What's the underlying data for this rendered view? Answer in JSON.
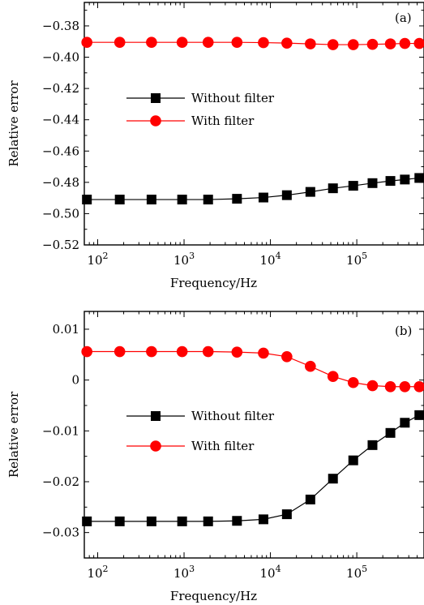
{
  "chart_data": [
    {
      "type": "line",
      "panel_label": "(a)",
      "xlabel": "Frequency/Hz",
      "ylabel": "Relative error",
      "x_scale": "log",
      "xlim": [
        70,
        600000
      ],
      "ylim": [
        -0.52,
        -0.365
      ],
      "x_ticks": [
        100,
        1000,
        10000,
        100000
      ],
      "x_tick_labels": [
        "10",
        "10",
        "10",
        "10"
      ],
      "x_tick_exponents": [
        "2",
        "3",
        "4",
        "5"
      ],
      "y_ticks": [
        -0.52,
        -0.5,
        -0.48,
        -0.46,
        -0.44,
        -0.42,
        -0.4,
        -0.38
      ],
      "y_tick_labels": [
        "−0.52",
        "−0.50",
        "−0.48",
        "−0.46",
        "−0.44",
        "−0.42",
        "−0.40",
        "−0.38"
      ],
      "legend_position": "center-left",
      "grid": false,
      "x": [
        75,
        180,
        420,
        950,
        1900,
        4100,
        8300,
        15500,
        29000,
        53000,
        91000,
        152000,
        245000,
        360000,
        530000
      ],
      "series": [
        {
          "name": "Without filter",
          "marker": "square",
          "color": "#000000",
          "values": [
            -0.491,
            -0.491,
            -0.491,
            -0.491,
            -0.491,
            -0.4905,
            -0.4897,
            -0.4882,
            -0.4861,
            -0.4838,
            -0.4822,
            -0.4805,
            -0.4791,
            -0.4782,
            -0.4772
          ]
        },
        {
          "name": "With filter",
          "marker": "circle",
          "color": "#ff0000",
          "values": [
            -0.3905,
            -0.3905,
            -0.3905,
            -0.3905,
            -0.3905,
            -0.3905,
            -0.3907,
            -0.391,
            -0.3915,
            -0.392,
            -0.392,
            -0.3918,
            -0.3915,
            -0.3912,
            -0.3912
          ]
        }
      ]
    },
    {
      "type": "line",
      "panel_label": "(b)",
      "xlabel": "Frequency/Hz",
      "ylabel": "Relative error",
      "x_scale": "log",
      "xlim": [
        70,
        600000
      ],
      "ylim": [
        -0.035,
        0.0135
      ],
      "x_ticks": [
        100,
        1000,
        10000,
        100000
      ],
      "x_tick_labels": [
        "10",
        "10",
        "10",
        "10"
      ],
      "x_tick_exponents": [
        "2",
        "3",
        "4",
        "5"
      ],
      "y_ticks": [
        -0.03,
        -0.02,
        -0.01,
        0,
        0.01
      ],
      "y_tick_labels": [
        "−0.03",
        "−0.02",
        "−0.01",
        "0",
        "0.01"
      ],
      "legend_position": "center-left",
      "grid": false,
      "x": [
        75,
        180,
        420,
        950,
        1900,
        4100,
        8300,
        15500,
        29000,
        53000,
        91000,
        152000,
        245000,
        360000,
        530000
      ],
      "series": [
        {
          "name": "Without filter",
          "marker": "square",
          "color": "#000000",
          "values": [
            -0.0278,
            -0.0278,
            -0.0278,
            -0.0278,
            -0.0278,
            -0.0277,
            -0.0274,
            -0.0264,
            -0.0235,
            -0.0194,
            -0.0158,
            -0.0128,
            -0.0104,
            -0.0084,
            -0.0069
          ]
        },
        {
          "name": "With filter",
          "marker": "circle",
          "color": "#ff0000",
          "values": [
            0.0056,
            0.0056,
            0.0056,
            0.0056,
            0.0056,
            0.0055,
            0.0053,
            0.0046,
            0.0027,
            0.0007,
            -0.0005,
            -0.0011,
            -0.0013,
            -0.0013,
            -0.0013
          ]
        }
      ]
    }
  ]
}
